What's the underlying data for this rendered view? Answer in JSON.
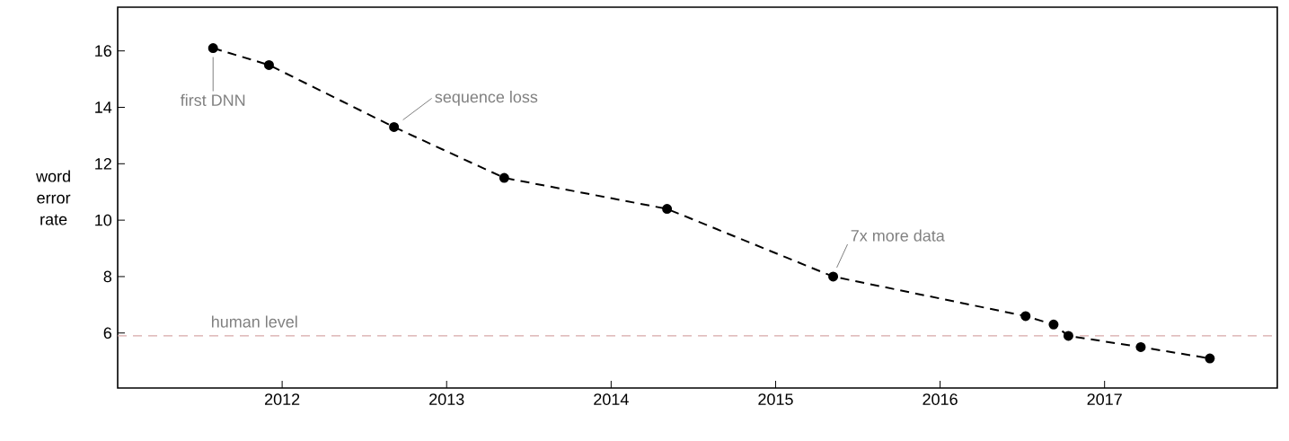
{
  "chart_data": {
    "type": "line",
    "ylabel": "word error rate",
    "x": [
      2011.58,
      2011.92,
      2012.68,
      2013.35,
      2014.34,
      2015.35,
      2016.52,
      2016.69,
      2016.78,
      2017.22,
      2017.64
    ],
    "values": [
      16.1,
      15.5,
      13.3,
      11.5,
      10.4,
      8.0,
      6.6,
      6.3,
      5.9,
      5.5,
      5.1
    ],
    "color": "#000000",
    "marker": "circle",
    "line_style": "dashed",
    "xlim": [
      2011,
      2018.05
    ],
    "ylim": [
      4.05,
      17.55
    ],
    "xticks": [
      2012,
      2013,
      2014,
      2015,
      2016,
      2017
    ],
    "yticks": [
      6,
      8,
      10,
      12,
      14,
      16
    ],
    "grid": false,
    "ref_lines": [
      {
        "axis": "y",
        "value": 5.9,
        "label": "human level",
        "color": "#d8a8a8",
        "line_style": "dashed"
      }
    ],
    "annotations": [
      {
        "text": "first DNN",
        "x": 2011.58,
        "y": 16.1
      },
      {
        "text": "sequence loss",
        "x": 2012.68,
        "y": 13.3
      },
      {
        "text": "7x more data",
        "x": 2015.35,
        "y": 8.0
      }
    ]
  }
}
